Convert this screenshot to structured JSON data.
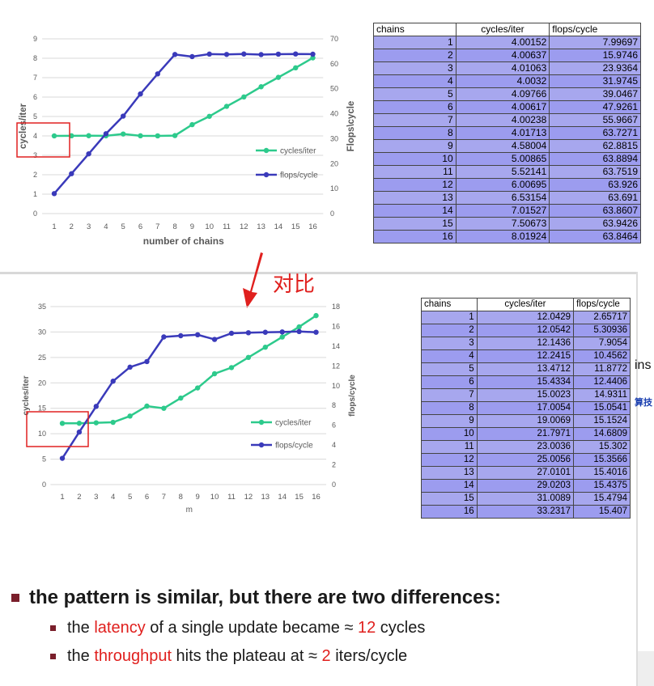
{
  "colors": {
    "cycles": "#2dca8c",
    "flops": "#3a3aba",
    "highlight": "#e02020",
    "table_bg": "#a3a3ee",
    "bullet": "#7a1f2b",
    "accent": "#e0201e"
  },
  "top_table": {
    "headers": [
      "chains",
      "cycles/iter",
      "flops/cycle"
    ],
    "rows": [
      [
        "1",
        "4.00152",
        "7.99697"
      ],
      [
        "2",
        "4.00637",
        "15.9746"
      ],
      [
        "3",
        "4.01063",
        "23.9364"
      ],
      [
        "4",
        "4.0032",
        "31.9745"
      ],
      [
        "5",
        "4.09766",
        "39.0467"
      ],
      [
        "6",
        "4.00617",
        "47.9261"
      ],
      [
        "7",
        "4.00238",
        "55.9667"
      ],
      [
        "8",
        "4.01713",
        "63.7271"
      ],
      [
        "9",
        "4.58004",
        "62.8815"
      ],
      [
        "10",
        "5.00865",
        "63.8894"
      ],
      [
        "11",
        "5.52141",
        "63.7519"
      ],
      [
        "12",
        "6.00695",
        "63.926"
      ],
      [
        "13",
        "6.53154",
        "63.691"
      ],
      [
        "14",
        "7.01527",
        "63.8607"
      ],
      [
        "15",
        "7.50673",
        "63.9426"
      ],
      [
        "16",
        "8.01924",
        "63.8464"
      ]
    ]
  },
  "bottom_table": {
    "headers": [
      "chains",
      "cycles/iter",
      "flops/cycle"
    ],
    "rows": [
      [
        "1",
        "12.0429",
        "2.65717"
      ],
      [
        "2",
        "12.0542",
        "5.30936"
      ],
      [
        "3",
        "12.1436",
        "7.9054"
      ],
      [
        "4",
        "12.2415",
        "10.4562"
      ],
      [
        "5",
        "13.4712",
        "11.8772"
      ],
      [
        "6",
        "15.4334",
        "12.4406"
      ],
      [
        "7",
        "15.0023",
        "14.9311"
      ],
      [
        "8",
        "17.0054",
        "15.0541"
      ],
      [
        "9",
        "19.0069",
        "15.1524"
      ],
      [
        "10",
        "21.7971",
        "14.6809"
      ],
      [
        "11",
        "23.0036",
        "15.302"
      ],
      [
        "12",
        "25.0056",
        "15.3566"
      ],
      [
        "13",
        "27.0101",
        "15.4016"
      ],
      [
        "14",
        "29.0203",
        "15.4375"
      ],
      [
        "15",
        "31.0089",
        "15.4794"
      ],
      [
        "16",
        "33.2317",
        "15.407"
      ]
    ]
  },
  "chart_data": [
    {
      "type": "line",
      "title": "",
      "xlabel": "number of chains",
      "ylabel": "cycles/iter",
      "y2label": "Flops\\cycle",
      "x": [
        1,
        2,
        3,
        4,
        5,
        6,
        7,
        8,
        9,
        10,
        11,
        12,
        13,
        14,
        15,
        16
      ],
      "ylim": [
        0,
        9
      ],
      "y2lim": [
        0,
        70
      ],
      "yticks": [
        0,
        1,
        2,
        3,
        4,
        5,
        6,
        7,
        8,
        9
      ],
      "y2ticks": [
        0,
        10,
        20,
        30,
        40,
        50,
        60,
        70
      ],
      "grid": true,
      "legend": "right",
      "series": [
        {
          "name": "cycles/iter",
          "axis": "left",
          "values": [
            4.00152,
            4.00637,
            4.01063,
            4.0032,
            4.09766,
            4.00617,
            4.00238,
            4.01713,
            4.58004,
            5.00865,
            5.52141,
            6.00695,
            6.53154,
            7.01527,
            7.50673,
            8.01924
          ]
        },
        {
          "name": "flops/cycle",
          "axis": "right",
          "values": [
            7.99697,
            15.9746,
            23.9364,
            31.9745,
            39.0467,
            47.9261,
            55.9667,
            63.7271,
            62.8815,
            63.8894,
            63.7519,
            63.926,
            63.691,
            63.8607,
            63.9426,
            63.8464
          ]
        }
      ]
    },
    {
      "type": "line",
      "title": "",
      "xlabel": "m",
      "ylabel": "cycles/iter",
      "y2label": "flops/cycle",
      "x": [
        1,
        2,
        3,
        4,
        5,
        6,
        7,
        8,
        9,
        10,
        11,
        12,
        13,
        14,
        15,
        16
      ],
      "ylim": [
        0,
        35
      ],
      "y2lim": [
        0,
        18
      ],
      "yticks": [
        0,
        5,
        10,
        15,
        20,
        25,
        30,
        35
      ],
      "y2ticks": [
        0,
        2,
        4,
        6,
        8,
        10,
        12,
        14,
        16,
        18
      ],
      "grid": true,
      "legend": "right",
      "series": [
        {
          "name": "cycles/iter",
          "axis": "left",
          "values": [
            12.0429,
            12.0542,
            12.1436,
            12.2415,
            13.4712,
            15.4334,
            15.0023,
            17.0054,
            19.0069,
            21.7971,
            23.0036,
            25.0056,
            27.0101,
            29.0203,
            31.0089,
            33.2317
          ]
        },
        {
          "name": "flops/cycle",
          "axis": "right",
          "values": [
            2.65717,
            5.30936,
            7.9054,
            10.4562,
            11.8772,
            12.4406,
            14.9311,
            15.0541,
            15.1524,
            14.6809,
            15.302,
            15.3566,
            15.4016,
            15.4375,
            15.4794,
            15.407
          ]
        }
      ]
    }
  ],
  "annotation": {
    "arrow_label": "对比"
  },
  "bullets": {
    "main": "the pattern is similar, but there are two differences:",
    "sub1": {
      "a": "the ",
      "b": "latency",
      "c": " of a single update became ≈ ",
      "d": "12",
      "e": " cycles"
    },
    "sub2": {
      "a": "the ",
      "b": "throughput",
      "c": " hits the plateau at ≈ ",
      "d": "2",
      "e": " iters/cycle"
    }
  },
  "cutoff_text": {
    "a": "ins",
    "b": "算技"
  }
}
